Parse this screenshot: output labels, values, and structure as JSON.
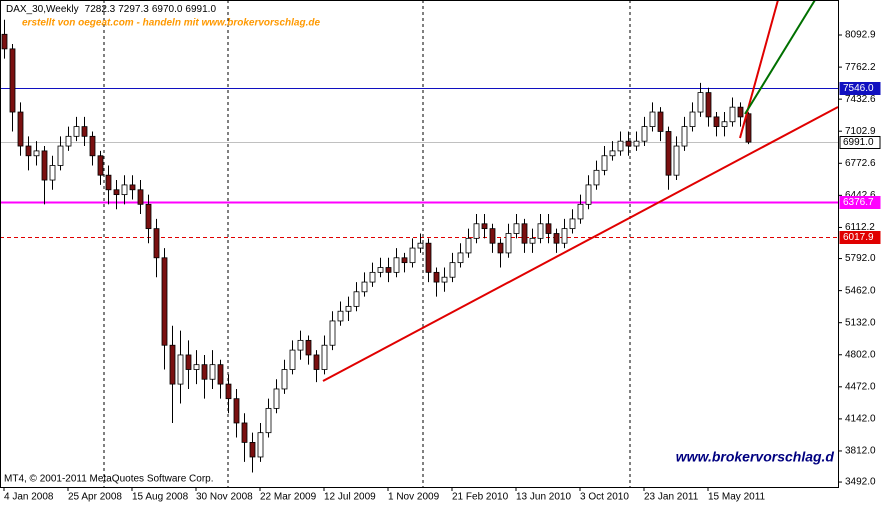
{
  "chart_data": {
    "type": "candlestick",
    "title": "DAX_30,Weekly",
    "header_ohlc": [
      "7282.3",
      "7297.3",
      "6970.0",
      "6991.0"
    ],
    "subtitle": "erstellt von oegeat.com - handeln mit www.brokervorschlag.de",
    "copyright": "MT4, © 2001-2011 MetaQuotes Software Corp.",
    "watermark": "www.brokervorschlag.d",
    "categories": [
      "4 Jan 2008",
      null,
      null,
      null,
      null,
      null,
      null,
      null,
      "25 Apr 2008",
      null,
      null,
      null,
      null,
      null,
      null,
      null,
      "15 Aug 2008",
      null,
      null,
      null,
      null,
      null,
      null,
      null,
      "30 Nov 2008",
      null,
      null,
      null,
      null,
      null,
      null,
      null,
      "22 Mar 2009",
      null,
      null,
      null,
      null,
      null,
      null,
      null,
      "12 Jul 2009",
      null,
      null,
      null,
      null,
      null,
      null,
      null,
      "1 Nov 2009",
      null,
      null,
      null,
      null,
      null,
      null,
      null,
      "21 Feb 2010",
      null,
      null,
      null,
      null,
      null,
      null,
      null,
      "13 Jun 2010",
      null,
      null,
      null,
      null,
      null,
      null,
      null,
      "3 Oct 2010",
      null,
      null,
      null,
      null,
      null,
      null,
      null,
      "23 Jan 2011",
      null,
      null,
      null,
      null,
      null,
      null,
      null,
      "15 May 2011",
      null,
      null,
      null,
      null,
      null
    ],
    "open": [
      8100,
      7950,
      7300,
      6950,
      6850,
      6900,
      6600,
      6750,
      6950,
      7050,
      7150,
      7050,
      6850,
      6650,
      6500,
      6450,
      6550,
      6500,
      6350,
      6100,
      5800,
      4900,
      4500,
      4800,
      4650,
      4700,
      4550,
      4700,
      4500,
      4350,
      4100,
      3900,
      3750,
      4000,
      4250,
      4450,
      4650,
      4850,
      4950,
      4800,
      4650,
      4900,
      5150,
      5250,
      5300,
      5450,
      5550,
      5650,
      5700,
      5650,
      5800,
      5750,
      5900,
      5950,
      5650,
      5550,
      5600,
      5750,
      5850,
      6000,
      6150,
      6100,
      5950,
      5850,
      6050,
      6150,
      5950,
      6000,
      6150,
      6050,
      5950,
      6100,
      6200,
      6350,
      6550,
      6700,
      6850,
      6900,
      7000,
      6950,
      7000,
      7150,
      7300,
      7100,
      6650,
      6950,
      7150,
      7300,
      7500,
      7250,
      7150,
      7200,
      7350,
      7282.3
    ],
    "high": [
      8250,
      8000,
      7400,
      7050,
      7000,
      6950,
      6850,
      7050,
      7150,
      7250,
      7250,
      7100,
      6900,
      6750,
      6600,
      6650,
      6650,
      6600,
      6450,
      6200,
      5900,
      5100,
      5050,
      4950,
      4850,
      4800,
      4850,
      4750,
      4600,
      4450,
      4200,
      4000,
      4100,
      4350,
      4550,
      4750,
      4950,
      5050,
      5000,
      4850,
      5000,
      5250,
      5350,
      5400,
      5550,
      5650,
      5750,
      5800,
      5800,
      5900,
      5850,
      6000,
      6050,
      6000,
      5700,
      5700,
      5850,
      5950,
      6100,
      6250,
      6250,
      6150,
      6000,
      6150,
      6250,
      6200,
      6100,
      6250,
      6250,
      6100,
      6200,
      6300,
      6450,
      6650,
      6800,
      6950,
      7000,
      7100,
      7100,
      7100,
      7250,
      7400,
      7350,
      7150,
      7050,
      7250,
      7400,
      7600,
      7550,
      7300,
      7300,
      7450,
      7400,
      7297.3
    ],
    "low": [
      7850,
      7100,
      6850,
      6700,
      6750,
      6350,
      6500,
      6700,
      6900,
      7000,
      6950,
      6750,
      6550,
      6350,
      6300,
      6350,
      6400,
      6250,
      5950,
      5600,
      4650,
      4100,
      4300,
      4450,
      4500,
      4350,
      4450,
      4350,
      4200,
      3950,
      3700,
      3590,
      3700,
      3950,
      4200,
      4400,
      4600,
      4750,
      4700,
      4520,
      4600,
      4850,
      5100,
      5150,
      5250,
      5400,
      5500,
      5600,
      5550,
      5600,
      5650,
      5700,
      5850,
      5550,
      5400,
      5450,
      5550,
      5700,
      5800,
      5950,
      6000,
      5850,
      5700,
      5800,
      6000,
      5850,
      5850,
      5950,
      5950,
      5850,
      5900,
      6050,
      6150,
      6300,
      6500,
      6650,
      6800,
      6850,
      6850,
      6900,
      6950,
      7100,
      7000,
      6500,
      6600,
      6900,
      7100,
      7250,
      7150,
      7050,
      7050,
      7150,
      7150,
      6970
    ],
    "close": [
      7950,
      7300,
      6950,
      6850,
      6900,
      6600,
      6750,
      6950,
      7050,
      7150,
      7050,
      6850,
      6650,
      6500,
      6450,
      6550,
      6500,
      6350,
      6100,
      5800,
      4900,
      4500,
      4800,
      4650,
      4700,
      4550,
      4700,
      4500,
      4350,
      4100,
      3900,
      3750,
      4000,
      4250,
      4450,
      4650,
      4850,
      4950,
      4800,
      4650,
      4900,
      5150,
      5250,
      5300,
      5450,
      5550,
      5650,
      5700,
      5650,
      5800,
      5750,
      5900,
      5950,
      5650,
      5550,
      5600,
      5750,
      5850,
      6000,
      6150,
      6100,
      5950,
      5850,
      6050,
      6150,
      5950,
      6000,
      6150,
      6050,
      5950,
      6100,
      6200,
      6350,
      6550,
      6700,
      6850,
      6900,
      7000,
      6950,
      7000,
      7150,
      7300,
      7100,
      6650,
      6950,
      7150,
      7300,
      7500,
      7250,
      7150,
      7200,
      7350,
      7250,
      6991
    ],
    "colors": {
      "up": "#ffffff",
      "down": "#7a1010",
      "wick": "#000000"
    },
    "ylim": [
      3441,
      8453
    ],
    "yticks": [
      8092.9,
      7762.2,
      7432.6,
      7102.9,
      6772.6,
      6442.6,
      6112.2,
      {
        "value": 5792,
        "label": "5792.0"
      },
      {
        "value": 5462,
        "label": "5462.0"
      },
      {
        "value": 5132,
        "label": "5132.0"
      },
      {
        "value": 4802,
        "label": "4802.0"
      },
      {
        "value": 4472,
        "label": "4472.0"
      },
      {
        "value": 4142,
        "label": "4142.0"
      },
      {
        "value": 3812,
        "label": "3812.0"
      },
      {
        "value": 3492,
        "label": "3492.0"
      }
    ],
    "levels": [
      {
        "value": 7546,
        "label": "7546.0",
        "color": "#1010c0",
        "style": "solid"
      },
      {
        "value": 6991,
        "label": "6991.0",
        "color": "#c0c0c0",
        "style": "bid"
      },
      {
        "value": 6376.7,
        "label": "6376.7",
        "color": "#ff00ff",
        "style": "thick"
      },
      {
        "value": 6017.9,
        "label": "6017.9",
        "color": "#e00000",
        "style": "dashed"
      }
    ]
  }
}
